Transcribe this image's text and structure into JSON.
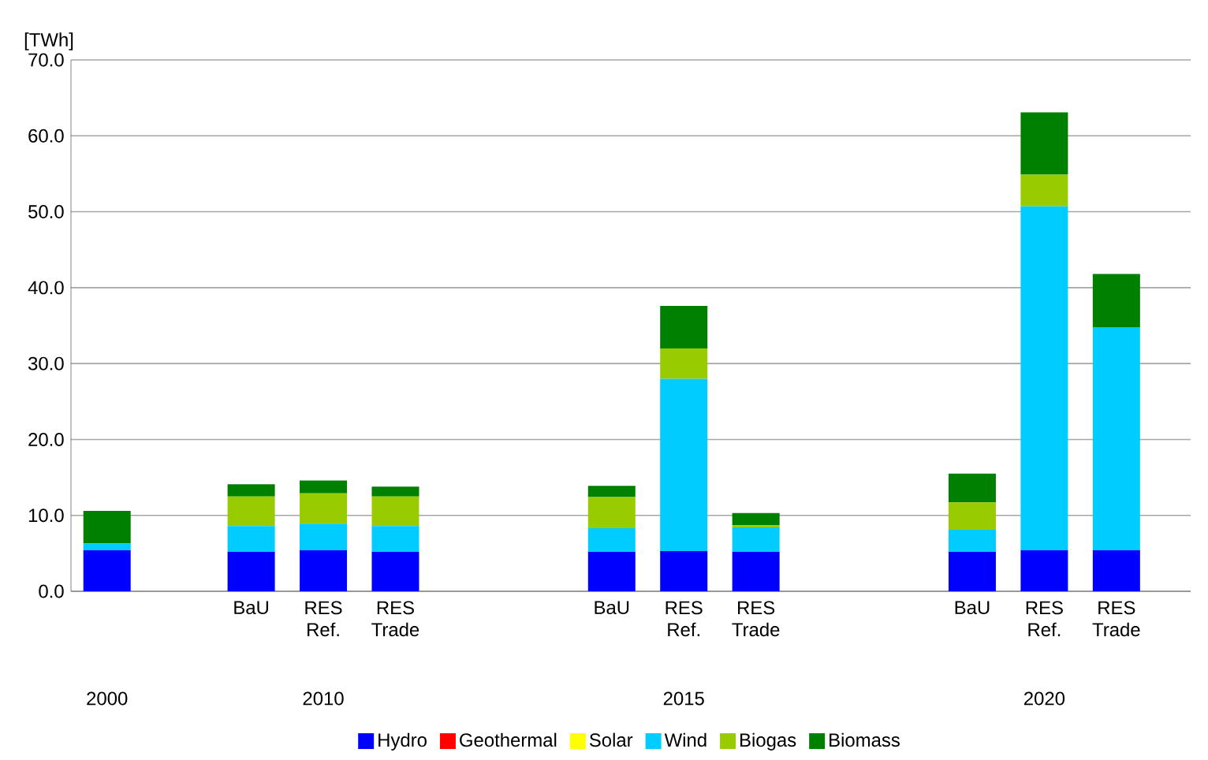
{
  "chart_data": {
    "type": "bar",
    "stacked": true,
    "ylabel": "[TWh]",
    "categories": [
      null,
      null,
      "BaU",
      "RES Ref.",
      "RES Trade",
      null,
      null,
      "BaU",
      "RES Ref.",
      "RES Trade",
      null,
      null,
      "BaU",
      "RES Ref.",
      "RES Trade"
    ],
    "series": [
      {
        "name": "Hydro",
        "color": "#0000ff",
        "values": [
          5.4,
          null,
          5.2,
          5.4,
          5.2,
          null,
          null,
          5.2,
          5.3,
          5.2,
          null,
          null,
          5.2,
          5.4,
          5.4
        ]
      },
      {
        "name": "Geothermal",
        "color": "#ff0000",
        "values": [
          0,
          null,
          0,
          0,
          0,
          null,
          null,
          0,
          0,
          0,
          null,
          null,
          0,
          0,
          0
        ]
      },
      {
        "name": "Solar",
        "color": "#ffff00",
        "values": [
          0,
          null,
          0,
          0,
          0,
          null,
          null,
          0,
          0,
          0,
          null,
          null,
          0,
          0,
          0
        ]
      },
      {
        "name": "Wind",
        "color": "#00ccff",
        "values": [
          0.9,
          null,
          3.4,
          3.5,
          3.4,
          null,
          null,
          3.1,
          22.7,
          3.2,
          null,
          null,
          2.9,
          45.3,
          29.4
        ]
      },
      {
        "name": "Biogas",
        "color": "#99cc00",
        "values": [
          0,
          null,
          3.9,
          4.0,
          3.9,
          null,
          null,
          4.1,
          4.0,
          0.3,
          null,
          null,
          3.6,
          4.2,
          0
        ]
      },
      {
        "name": "Biomass",
        "color": "#008000",
        "values": [
          4.3,
          null,
          1.6,
          1.7,
          1.3,
          null,
          null,
          1.5,
          5.6,
          1.6,
          null,
          null,
          3.8,
          8.2,
          7.0
        ]
      }
    ],
    "annotations": [
      "2000",
      "2010",
      "2015",
      "2020"
    ],
    "ylim": [
      0,
      70
    ],
    "yticks": [
      {
        "value": 0,
        "label": "0.0"
      },
      {
        "value": 10,
        "label": "10.0"
      },
      {
        "value": 20,
        "label": "20.0"
      },
      {
        "value": 30,
        "label": "30.0"
      },
      {
        "value": 40,
        "label": "40.0"
      },
      {
        "value": 50,
        "label": "50.0"
      },
      {
        "value": 60,
        "label": "60.0"
      },
      {
        "value": 70,
        "label": "70.0"
      }
    ],
    "grid": "y",
    "legend": "bottom"
  }
}
